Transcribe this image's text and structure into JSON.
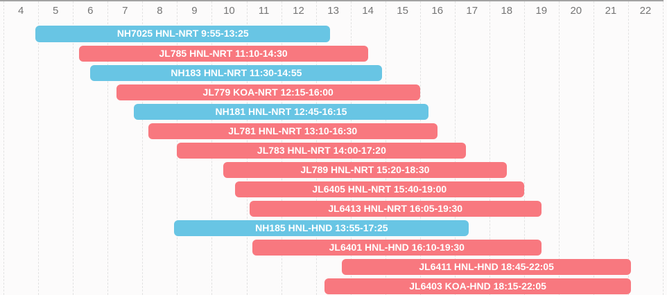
{
  "chart_data": {
    "type": "bar",
    "subtype": "gantt-timeline",
    "title": "",
    "xlabel": "",
    "ylabel": "",
    "axis": {
      "unit": "hour-of-day",
      "ticks": [
        "4",
        "5",
        "6",
        "7",
        "8",
        "9",
        "10",
        "11",
        "12",
        "13",
        "14",
        "15",
        "16",
        "17",
        "18",
        "19",
        "20",
        "21",
        "22"
      ],
      "tick_min": 4,
      "tick_max": 22,
      "grid_hour_min": 4,
      "grid_hour_max": 23,
      "grid_style": "dashed",
      "labels_centered_between_gridlines": true
    },
    "colors": {
      "NH": "#68c5e4",
      "JL": "#f8787f",
      "bar_text": "#ffffff",
      "axis_text": "#757575",
      "gridline": "#e2e2e2",
      "top_border": "#a2a2a2",
      "background": "#fcfbfb"
    },
    "rows": [
      {
        "flight": "NH7025",
        "route": "HNL-NRT",
        "time_range": "9:55-13:25",
        "label": "NH7025 HNL-NRT 9:55-13:25",
        "carrier": "NH",
        "bar_start_hour": 4.9167,
        "bar_end_hour": 13.4167
      },
      {
        "flight": "JL785",
        "route": "HNL-NRT",
        "time_range": "11:10-14:30",
        "label": "JL785 HNL-NRT 11:10-14:30",
        "carrier": "JL",
        "bar_start_hour": 6.1667,
        "bar_end_hour": 14.5
      },
      {
        "flight": "NH183",
        "route": "HNL-NRT",
        "time_range": "11:30-14:55",
        "label": "NH183 HNL-NRT 11:30-14:55",
        "carrier": "NH",
        "bar_start_hour": 6.5,
        "bar_end_hour": 14.9167
      },
      {
        "flight": "JL779",
        "route": "KOA-NRT",
        "time_range": "12:15-16:00",
        "label": "JL779 KOA-NRT 12:15-16:00",
        "carrier": "JL",
        "bar_start_hour": 7.25,
        "bar_end_hour": 16.0
      },
      {
        "flight": "NH181",
        "route": "HNL-NRT",
        "time_range": "12:45-16:15",
        "label": "NH181 HNL-NRT 12:45-16:15",
        "carrier": "NH",
        "bar_start_hour": 7.75,
        "bar_end_hour": 16.25
      },
      {
        "flight": "JL781",
        "route": "HNL-NRT",
        "time_range": "13:10-16:30",
        "label": "JL781 HNL-NRT 13:10-16:30",
        "carrier": "JL",
        "bar_start_hour": 8.1667,
        "bar_end_hour": 16.5
      },
      {
        "flight": "JL783",
        "route": "HNL-NRT",
        "time_range": "14:00-17:20",
        "label": "JL783 HNL-NRT 14:00-17:20",
        "carrier": "JL",
        "bar_start_hour": 9.0,
        "bar_end_hour": 17.3333
      },
      {
        "flight": "JL789",
        "route": "HNL-NRT",
        "time_range": "15:20-18:30",
        "label": "JL789 HNL-NRT 15:20-18:30",
        "carrier": "JL",
        "bar_start_hour": 10.3333,
        "bar_end_hour": 18.5
      },
      {
        "flight": "JL6405",
        "route": "HNL-NRT",
        "time_range": "15:40-19:00",
        "label": "JL6405 HNL-NRT 15:40-19:00",
        "carrier": "JL",
        "bar_start_hour": 10.6667,
        "bar_end_hour": 19.0
      },
      {
        "flight": "JL6413",
        "route": "HNL-NRT",
        "time_range": "16:05-19:30",
        "label": "JL6413 HNL-NRT 16:05-19:30",
        "carrier": "JL",
        "bar_start_hour": 11.0833,
        "bar_end_hour": 19.5
      },
      {
        "flight": "NH185",
        "route": "HNL-HND",
        "time_range": "13:55-17:25",
        "label": "NH185 HNL-HND 13:55-17:25",
        "carrier": "NH",
        "bar_start_hour": 8.9167,
        "bar_end_hour": 17.4167
      },
      {
        "flight": "JL6401",
        "route": "HNL-HND",
        "time_range": "16:10-19:30",
        "label": "JL6401 HNL-HND 16:10-19:30",
        "carrier": "JL",
        "bar_start_hour": 11.1667,
        "bar_end_hour": 19.5
      },
      {
        "flight": "JL6411",
        "route": "HNL-HND",
        "time_range": "18:45-22:05",
        "label": "JL6411 HNL-HND 18:45-22:05",
        "carrier": "JL",
        "bar_start_hour": 13.75,
        "bar_end_hour": 22.0833
      },
      {
        "flight": "JL6403",
        "route": "KOA-HND",
        "time_range": "18:15-22:05",
        "label": "JL6403 KOA-HND 18:15-22:05",
        "carrier": "JL",
        "bar_start_hour": 13.25,
        "bar_end_hour": 22.0833
      }
    ]
  }
}
